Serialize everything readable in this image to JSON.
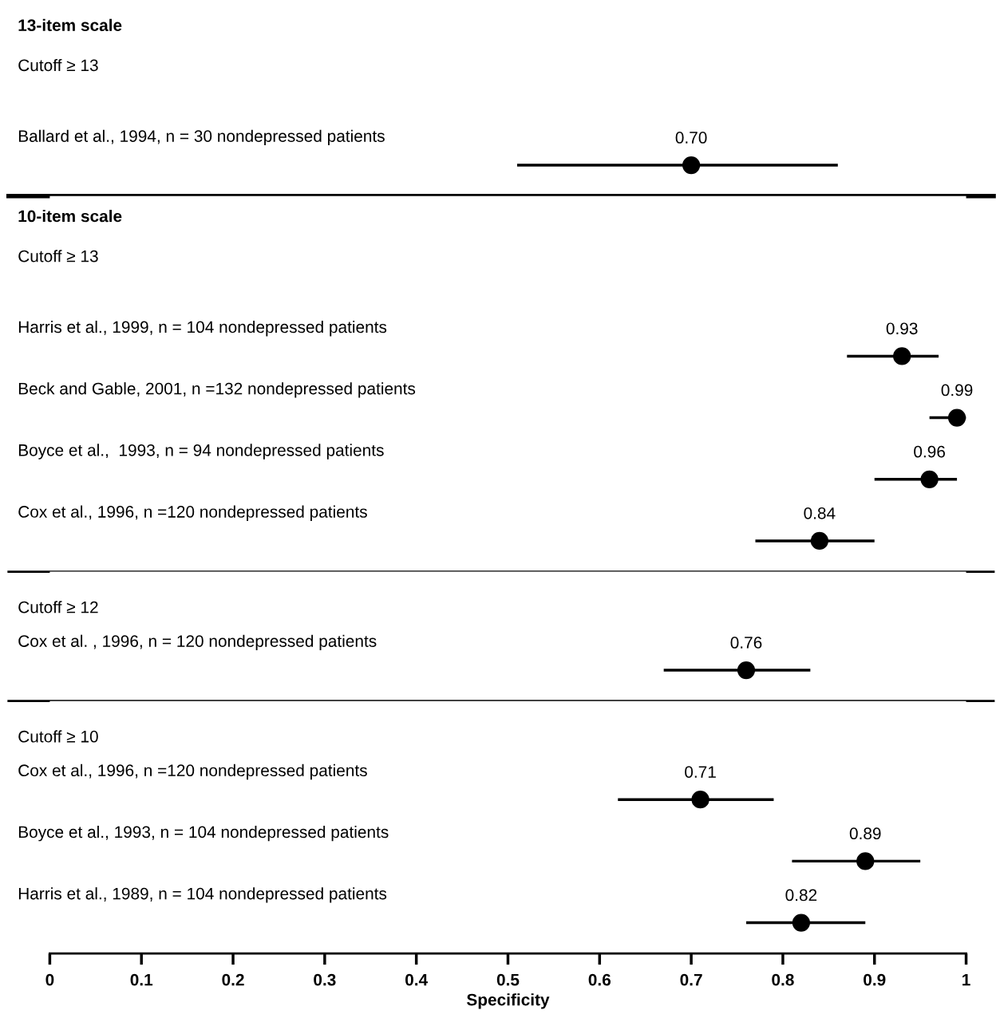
{
  "chart_data": [
    {
      "type": "scatter",
      "orientation": "horizontal",
      "title": "13-item scale",
      "subtitle": "Cutoff ≥ 13",
      "categories": [
        "Ballard et al., 1994, n = 30 nondepressed patients"
      ],
      "values": [
        0.7
      ],
      "value_labels": [
        "0.70"
      ],
      "errors": [
        [
          0.51,
          0.86
        ]
      ],
      "color": "#000000",
      "marker": "circle",
      "xlim": [
        0,
        1
      ],
      "tick_labels": "y",
      "grid": false
    },
    {
      "type": "scatter",
      "orientation": "horizontal",
      "title": "10-item scale",
      "subtitle": "Cutoff ≥ 13",
      "categories": [
        "Harris et al., 1999, n = 104 nondepressed patients",
        "Beck and Gable, 2001, n =132 nondepressed patients",
        "Boyce et al.,  1993, n = 94 nondepressed patients",
        "Cox et al., 1996, n =120 nondepressed patients"
      ],
      "values": [
        0.93,
        0.99,
        0.96,
        0.84
      ],
      "value_labels": [
        "0.93",
        "0.99",
        "0.96",
        "0.84"
      ],
      "errors": [
        [
          0.87,
          0.97
        ],
        [
          0.96,
          1.0
        ],
        [
          0.9,
          0.99
        ],
        [
          0.77,
          0.9
        ]
      ],
      "color": "#000000",
      "marker": "circle",
      "xlim": [
        0,
        1
      ],
      "tick_labels": "y",
      "grid": false
    },
    {
      "type": "scatter",
      "orientation": "horizontal",
      "subtitle": "Cutoff ≥ 12",
      "categories": [
        "Cox et al. , 1996, n = 120 nondepressed patients"
      ],
      "values": [
        0.76
      ],
      "value_labels": [
        "0.76"
      ],
      "errors": [
        [
          0.67,
          0.83
        ]
      ],
      "color": "#000000",
      "marker": "circle",
      "xlim": [
        0,
        1
      ],
      "tick_labels": "y",
      "grid": false
    },
    {
      "type": "scatter",
      "orientation": "horizontal",
      "subtitle": "Cutoff ≥ 10",
      "xlabel": "Specificity",
      "categories": [
        "Cox et al., 1996, n =120 nondepressed patients",
        "Boyce et al., 1993, n = 104 nondepressed patients",
        "Harris et al., 1989, n = 104 nondepressed patients"
      ],
      "values": [
        0.71,
        0.89,
        0.82
      ],
      "value_labels": [
        "0.71",
        "0.89",
        "0.82"
      ],
      "errors": [
        [
          0.62,
          0.79
        ],
        [
          0.81,
          0.95
        ],
        [
          0.76,
          0.89
        ]
      ],
      "color": "#000000",
      "marker": "circle",
      "xlim": [
        0,
        1
      ],
      "xticks": [
        0,
        0.1,
        0.2,
        0.3,
        0.4,
        0.5,
        0.6,
        0.7,
        0.8,
        0.9,
        1
      ],
      "grid": false
    }
  ]
}
